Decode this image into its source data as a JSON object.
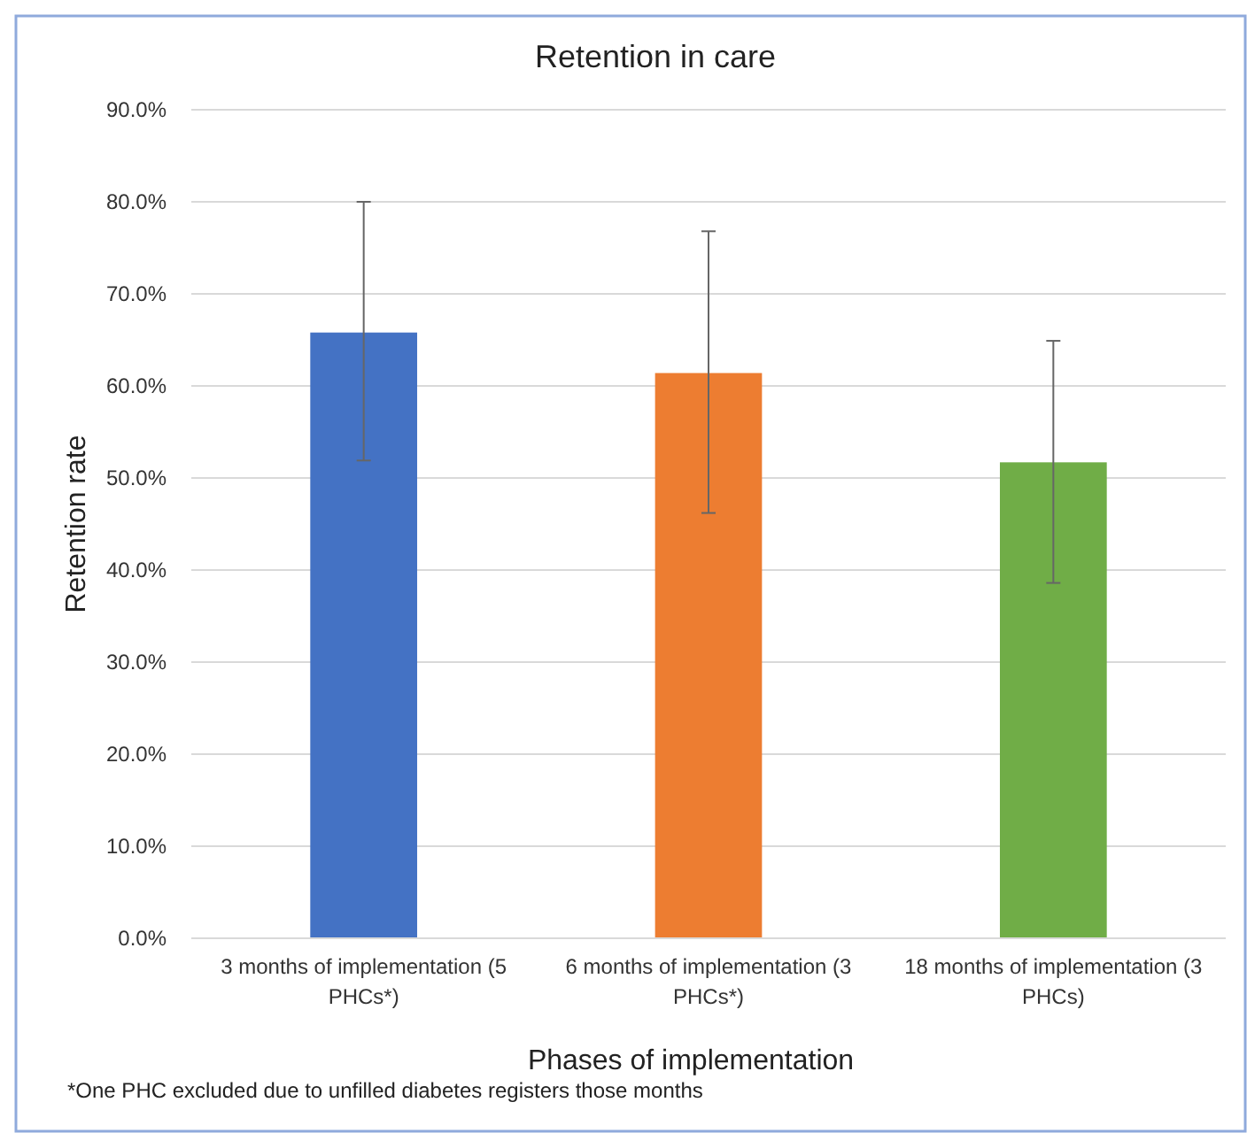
{
  "chart_data": {
    "type": "bar",
    "title": "Retention in care",
    "xlabel": "Phases of implementation",
    "ylabel": "Retention rate",
    "categories": [
      "3 months of implementation (5 PHCs*)",
      "6 months of implementation (3 PHCs*)",
      "18 months of implementation (3 PHCs)"
    ],
    "values": [
      65.8,
      61.4,
      51.7
    ],
    "colors": [
      "#4472c4",
      "#ed7d31",
      "#70ad47"
    ],
    "errors": [
      [
        51.9,
        80.0
      ],
      [
        46.2,
        76.8
      ],
      [
        38.6,
        64.9
      ]
    ],
    "ylim": [
      0,
      90
    ],
    "yticks": [
      {
        "value": 0,
        "label": "0.0%"
      },
      {
        "value": 10,
        "label": "10.0%"
      },
      {
        "value": 20,
        "label": "20.0%"
      },
      {
        "value": 30,
        "label": "30.0%"
      },
      {
        "value": 40,
        "label": "40.0%"
      },
      {
        "value": 50,
        "label": "50.0%"
      },
      {
        "value": 60,
        "label": "60.0%"
      },
      {
        "value": 70,
        "label": "70.0%"
      },
      {
        "value": 80,
        "label": "80.0%"
      },
      {
        "value": 90,
        "label": "90.0%"
      }
    ],
    "grid": "y",
    "annotations": [
      "*One PHC excluded due to unfilled diabetes registers those months"
    ]
  }
}
